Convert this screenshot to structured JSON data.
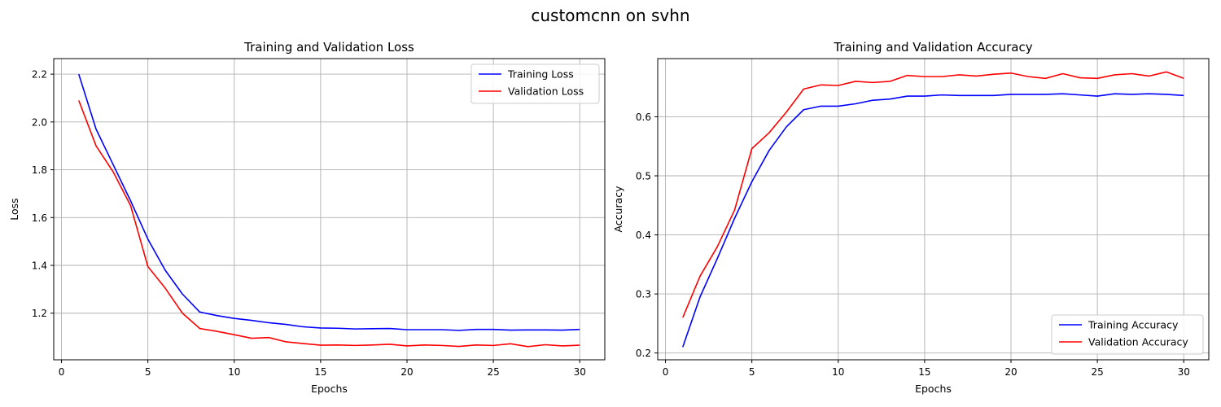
{
  "suptitle": "customcnn on svhn",
  "chart_data": [
    {
      "type": "line",
      "title": "Training and Validation Loss",
      "xlabel": "Epochs",
      "ylabel": "Loss",
      "xlim": [
        -0.45,
        31.45
      ],
      "ylim": [
        1.005,
        2.265
      ],
      "xticks": [
        0,
        5,
        10,
        15,
        20,
        25,
        30
      ],
      "yticks": [
        1.2,
        1.4,
        1.6,
        1.8,
        2.0,
        2.2
      ],
      "tick_format": 1,
      "grid": true,
      "legend_position": "top-right",
      "x": [
        1,
        2,
        3,
        4,
        5,
        6,
        7,
        8,
        9,
        10,
        11,
        12,
        13,
        14,
        15,
        16,
        17,
        18,
        19,
        20,
        21,
        22,
        23,
        24,
        25,
        26,
        27,
        28,
        29,
        30
      ],
      "series": [
        {
          "name": "Training Loss",
          "color": "#0000ff",
          "values": [
            2.2,
            1.97,
            1.82,
            1.67,
            1.51,
            1.38,
            1.28,
            1.205,
            1.19,
            1.178,
            1.17,
            1.16,
            1.153,
            1.143,
            1.138,
            1.137,
            1.134,
            1.135,
            1.136,
            1.131,
            1.131,
            1.131,
            1.128,
            1.132,
            1.132,
            1.129,
            1.13,
            1.13,
            1.129,
            1.132
          ]
        },
        {
          "name": "Validation Loss",
          "color": "#ff0000",
          "values": [
            2.09,
            1.9,
            1.79,
            1.65,
            1.395,
            1.305,
            1.2,
            1.136,
            1.124,
            1.11,
            1.095,
            1.098,
            1.08,
            1.073,
            1.066,
            1.067,
            1.065,
            1.067,
            1.07,
            1.063,
            1.067,
            1.065,
            1.061,
            1.067,
            1.065,
            1.072,
            1.06,
            1.068,
            1.063,
            1.066
          ]
        }
      ]
    },
    {
      "type": "line",
      "title": "Training and Validation Accuracy",
      "xlabel": "Epochs",
      "ylabel": "Accuracy",
      "xlim": [
        -0.45,
        31.45
      ],
      "ylim": [
        0.1885,
        0.6985
      ],
      "xticks": [
        0,
        5,
        10,
        15,
        20,
        25,
        30
      ],
      "yticks": [
        0.2,
        0.3,
        0.4,
        0.5,
        0.6
      ],
      "tick_format": 1,
      "grid": true,
      "legend_position": "bottom-right",
      "x": [
        1,
        2,
        3,
        4,
        5,
        6,
        7,
        8,
        9,
        10,
        11,
        12,
        13,
        14,
        15,
        16,
        17,
        18,
        19,
        20,
        21,
        22,
        23,
        24,
        25,
        26,
        27,
        28,
        29,
        30
      ],
      "series": [
        {
          "name": "Training Accuracy",
          "color": "#0000ff",
          "values": [
            0.21,
            0.295,
            0.36,
            0.428,
            0.49,
            0.543,
            0.583,
            0.612,
            0.618,
            0.618,
            0.622,
            0.628,
            0.63,
            0.635,
            0.635,
            0.637,
            0.636,
            0.636,
            0.636,
            0.638,
            0.638,
            0.638,
            0.639,
            0.637,
            0.635,
            0.639,
            0.638,
            0.639,
            0.638,
            0.636
          ]
        },
        {
          "name": "Validation Accuracy",
          "color": "#ff0000",
          "values": [
            0.26,
            0.33,
            0.38,
            0.442,
            0.546,
            0.573,
            0.608,
            0.647,
            0.654,
            0.653,
            0.66,
            0.658,
            0.66,
            0.67,
            0.668,
            0.668,
            0.671,
            0.669,
            0.672,
            0.674,
            0.668,
            0.665,
            0.673,
            0.666,
            0.665,
            0.671,
            0.673,
            0.669,
            0.676,
            0.665
          ]
        }
      ]
    }
  ]
}
